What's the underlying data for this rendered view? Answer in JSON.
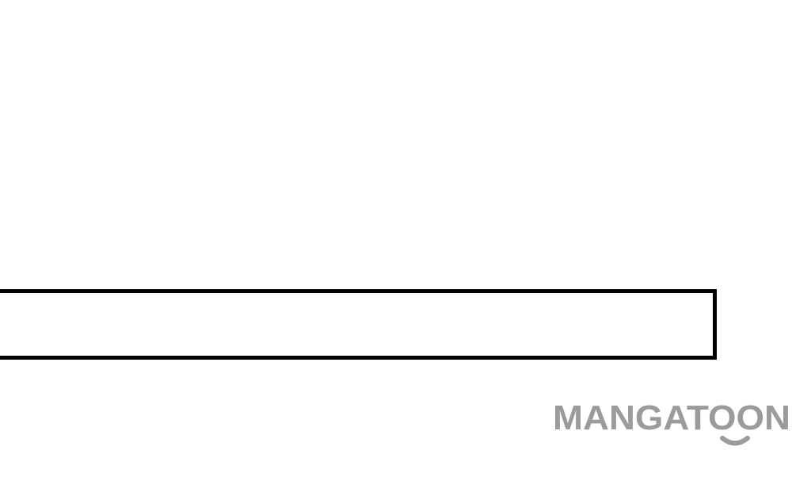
{
  "watermark": {
    "text": "MANGATOON",
    "color": "#9b9b9b"
  },
  "panel": {
    "border_color": "#000000",
    "fill_color": "#ffffff"
  }
}
